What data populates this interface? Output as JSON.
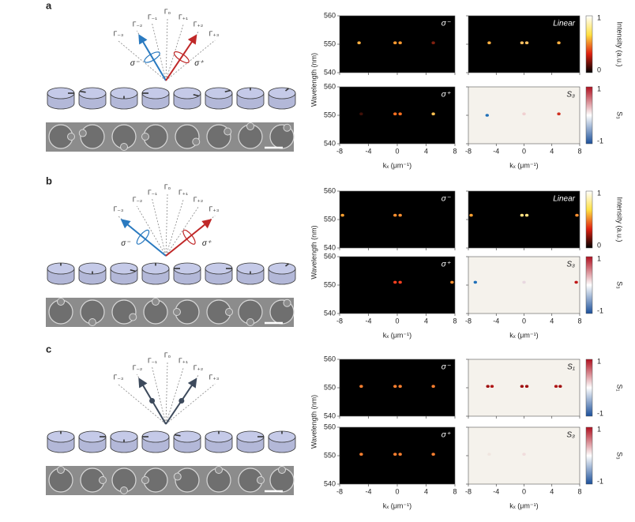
{
  "axes": {
    "xlabel": "kₓ (μm⁻¹)",
    "ylabel": "Wavelength (nm)",
    "xlim": [
      -8,
      8
    ],
    "ylim": [
      540,
      560
    ],
    "xticks": [
      -8,
      -4,
      0,
      4,
      8
    ],
    "yticks": [
      540,
      550,
      560
    ]
  },
  "panels": [
    {
      "label": "a",
      "orders": [
        "Γ₋₃",
        "Γ₋₂",
        "Γ₋₁",
        "Γ₀",
        "Γ₊₁",
        "Γ₊₂",
        "Γ₊₃"
      ],
      "pol": [
        "σ⁻",
        "σ⁺"
      ],
      "plots": [
        {
          "label": "σ⁻",
          "background": "#000000",
          "spots": [
            {
              "x": -5.3,
              "y": 550.5,
              "color": "#ffb040"
            },
            {
              "x": -0.3,
              "y": 550.5,
              "color": "#ff9a30"
            },
            {
              "x": 0.4,
              "y": 550.5,
              "color": "#ff9a30"
            },
            {
              "x": 5,
              "y": 550.5,
              "color": "#802010"
            }
          ]
        },
        {
          "label": "Linear",
          "background": "#000000",
          "spots": [
            {
              "x": -5,
              "y": 550.5,
              "color": "#ffb040"
            },
            {
              "x": -0.3,
              "y": 550.5,
              "color": "#ffc060"
            },
            {
              "x": 0.4,
              "y": 550.5,
              "color": "#ffc060"
            },
            {
              "x": 5,
              "y": 550.5,
              "color": "#ffb040"
            }
          ],
          "colorbar": {
            "label": "Intensity (a.u.)",
            "ticks": [
              1,
              0
            ],
            "colors": [
              "#ffffff",
              "#ffe040",
              "#e02010",
              "#000000"
            ]
          }
        },
        {
          "label": "σ⁺",
          "background": "#000000",
          "spots": [
            {
              "x": -5,
              "y": 550.5,
              "color": "#401008"
            },
            {
              "x": -0.3,
              "y": 550.5,
              "color": "#ff7020"
            },
            {
              "x": 0.4,
              "y": 550.5,
              "color": "#ff7020"
            },
            {
              "x": 5,
              "y": 550.5,
              "color": "#ffc050"
            }
          ]
        },
        {
          "label": "S₃",
          "background": "#f5f2ec",
          "spots": [
            {
              "x": -5.3,
              "y": 550,
              "color": "#1f6fb8"
            },
            {
              "x": 0,
              "y": 550.5,
              "color": "#f0d0d0"
            },
            {
              "x": 5,
              "y": 550.5,
              "color": "#d03020"
            }
          ],
          "colorbar": {
            "label": "S₃",
            "ticks": [
              1,
              -1
            ],
            "colors": [
              "#b01020",
              "#ffffff",
              "#1a4f9a"
            ]
          }
        }
      ]
    },
    {
      "label": "b",
      "orders": [
        "Γ₋₃",
        "Γ₋₂",
        "Γ₋₁",
        "Γ₀",
        "Γ₊₁",
        "Γ₊₂",
        "Γ₊₃"
      ],
      "pol": [
        "σ⁻",
        "σ⁺"
      ],
      "plots": [
        {
          "label": "σ⁻",
          "background": "#000000",
          "spots": [
            {
              "x": -7.6,
              "y": 551.5,
              "color": "#ffa030"
            },
            {
              "x": -0.3,
              "y": 551.5,
              "color": "#ff9030"
            },
            {
              "x": 0.4,
              "y": 551.5,
              "color": "#ff9030"
            }
          ]
        },
        {
          "label": "Linear",
          "background": "#000000",
          "spots": [
            {
              "x": -7.6,
              "y": 551.5,
              "color": "#ffa030"
            },
            {
              "x": -0.3,
              "y": 551.5,
              "color": "#ffe080"
            },
            {
              "x": 0.4,
              "y": 551.5,
              "color": "#ffe080"
            },
            {
              "x": 7.6,
              "y": 551.5,
              "color": "#ff9030"
            }
          ],
          "colorbar": {
            "label": "Intensity (a.u.)",
            "ticks": [
              1,
              0
            ],
            "colors": [
              "#ffffff",
              "#ffe040",
              "#e02010",
              "#000000"
            ]
          }
        },
        {
          "label": "σ⁺",
          "background": "#000000",
          "spots": [
            {
              "x": -0.3,
              "y": 551,
              "color": "#ff4020"
            },
            {
              "x": 0.4,
              "y": 551,
              "color": "#ff4020"
            },
            {
              "x": 7.6,
              "y": 551,
              "color": "#ff9030"
            }
          ]
        },
        {
          "label": "S₃",
          "background": "#f5f2ec",
          "spots": [
            {
              "x": -7,
              "y": 551,
              "color": "#1f6fb8"
            },
            {
              "x": 0,
              "y": 551,
              "color": "#e8d8e0"
            },
            {
              "x": 7.5,
              "y": 551,
              "color": "#c01818"
            }
          ],
          "colorbar": {
            "label": "S₃",
            "ticks": [
              1,
              -1
            ],
            "colors": [
              "#b01020",
              "#ffffff",
              "#1a4f9a"
            ]
          }
        }
      ]
    },
    {
      "label": "c",
      "orders": [
        "Γ₋₃",
        "Γ₋₂",
        "Γ₋₁",
        "Γ₀",
        "Γ₊₁",
        "Γ₊₂",
        "Γ₊₃"
      ],
      "plots": [
        {
          "label": "σ⁻",
          "background": "#000000",
          "spots": [
            {
              "x": -5,
              "y": 550.5,
              "color": "#ff8030"
            },
            {
              "x": -0.3,
              "y": 550.5,
              "color": "#ff8030"
            },
            {
              "x": 0.4,
              "y": 550.5,
              "color": "#ff8030"
            },
            {
              "x": 5,
              "y": 550.5,
              "color": "#ff8030"
            }
          ]
        },
        {
          "label": "S₁",
          "background": "#f5f2ec",
          "spots": [
            {
              "x": -5.2,
              "y": 550.5,
              "color": "#a01010"
            },
            {
              "x": -4.6,
              "y": 550.5,
              "color": "#b01818"
            },
            {
              "x": -0.3,
              "y": 550.5,
              "color": "#a01010"
            },
            {
              "x": 0.4,
              "y": 550.5,
              "color": "#a01010"
            },
            {
              "x": 4.6,
              "y": 550.5,
              "color": "#b01818"
            },
            {
              "x": 5.2,
              "y": 550.5,
              "color": "#a01010"
            }
          ],
          "colorbar": {
            "label": "S₁",
            "ticks": [
              1,
              -1
            ],
            "colors": [
              "#b01020",
              "#ffffff",
              "#1a4f9a"
            ]
          }
        },
        {
          "label": "σ⁺",
          "background": "#000000",
          "spots": [
            {
              "x": -5,
              "y": 550.5,
              "color": "#ff8030"
            },
            {
              "x": -0.3,
              "y": 550.5,
              "color": "#ff8030"
            },
            {
              "x": 0.4,
              "y": 550.5,
              "color": "#ff8030"
            },
            {
              "x": 5,
              "y": 550.5,
              "color": "#ff8030"
            }
          ]
        },
        {
          "label": "S₃",
          "background": "#f5f2ec",
          "spots": [
            {
              "x": -5,
              "y": 550.5,
              "color": "#f0e6e0"
            },
            {
              "x": 0,
              "y": 550.5,
              "color": "#f0dcdc"
            }
          ],
          "colorbar": {
            "label": "S₃",
            "ticks": [
              1,
              -1
            ],
            "colors": [
              "#b01020",
              "#ffffff",
              "#1a4f9a"
            ]
          }
        }
      ]
    }
  ]
}
